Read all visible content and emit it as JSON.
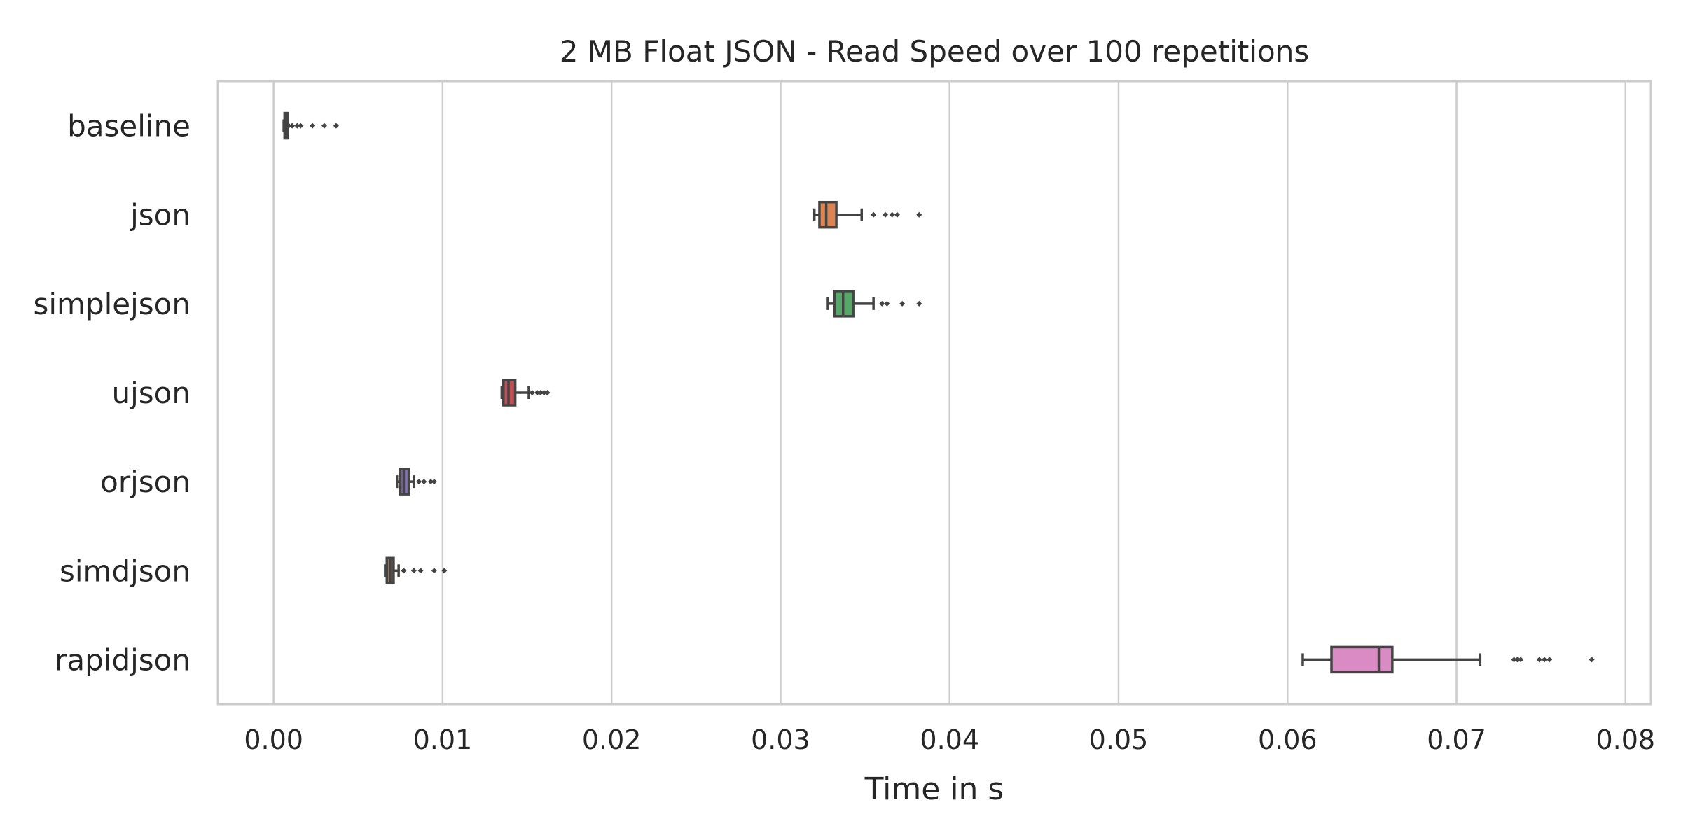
{
  "chart_data": {
    "type": "box",
    "orientation": "horizontal",
    "title": "2 MB Float JSON - Read Speed over 100 repetitions",
    "xlabel": "Time in s",
    "ylabel": "",
    "xlim": [
      -0.0033,
      0.0815
    ],
    "xticks": [
      0.0,
      0.01,
      0.02,
      0.03,
      0.04,
      0.05,
      0.06,
      0.07,
      0.08
    ],
    "xtick_labels": [
      "0.00",
      "0.01",
      "0.02",
      "0.03",
      "0.04",
      "0.05",
      "0.06",
      "0.07",
      "0.08"
    ],
    "grid": "vertical",
    "categories": [
      "baseline",
      "json",
      "simplejson",
      "ujson",
      "orjson",
      "simdjson",
      "rapidjson"
    ],
    "colors": [
      "#4c72b0",
      "#dd8452",
      "#55a868",
      "#c44e52",
      "#8172b3",
      "#937860",
      "#da8bc3"
    ],
    "line_color": "#444444",
    "boxes": [
      {
        "whislo": 0.0006,
        "q1": 0.00065,
        "med": 0.0007,
        "q3": 0.00075,
        "whishi": 0.0008,
        "fliers": [
          0.0009,
          0.0011,
          0.0014,
          0.0016,
          0.0023,
          0.003,
          0.0037
        ]
      },
      {
        "whislo": 0.032,
        "q1": 0.0323,
        "med": 0.0327,
        "q3": 0.0333,
        "whishi": 0.0348,
        "fliers": [
          0.0355,
          0.0362,
          0.0366,
          0.0369,
          0.0382
        ]
      },
      {
        "whislo": 0.0328,
        "q1": 0.0332,
        "med": 0.0337,
        "q3": 0.0343,
        "whishi": 0.0355,
        "fliers": [
          0.036,
          0.0363,
          0.0372,
          0.0382
        ]
      },
      {
        "whislo": 0.0135,
        "q1": 0.0136,
        "med": 0.0139,
        "q3": 0.0143,
        "whishi": 0.0151,
        "fliers": [
          0.0153,
          0.0156,
          0.0158,
          0.016,
          0.0162
        ]
      },
      {
        "whislo": 0.0073,
        "q1": 0.0075,
        "med": 0.0077,
        "q3": 0.008,
        "whishi": 0.0083,
        "fliers": [
          0.0086,
          0.0089,
          0.0093,
          0.0095
        ]
      },
      {
        "whislo": 0.0066,
        "q1": 0.0067,
        "med": 0.0069,
        "q3": 0.0071,
        "whishi": 0.0074,
        "fliers": [
          0.0077,
          0.0083,
          0.0087,
          0.0095,
          0.0101
        ]
      },
      {
        "whislo": 0.0609,
        "q1": 0.0626,
        "med": 0.0654,
        "q3": 0.0662,
        "whishi": 0.0714,
        "fliers": [
          0.0734,
          0.0736,
          0.0738,
          0.0749,
          0.0752,
          0.0755,
          0.078
        ]
      }
    ]
  }
}
